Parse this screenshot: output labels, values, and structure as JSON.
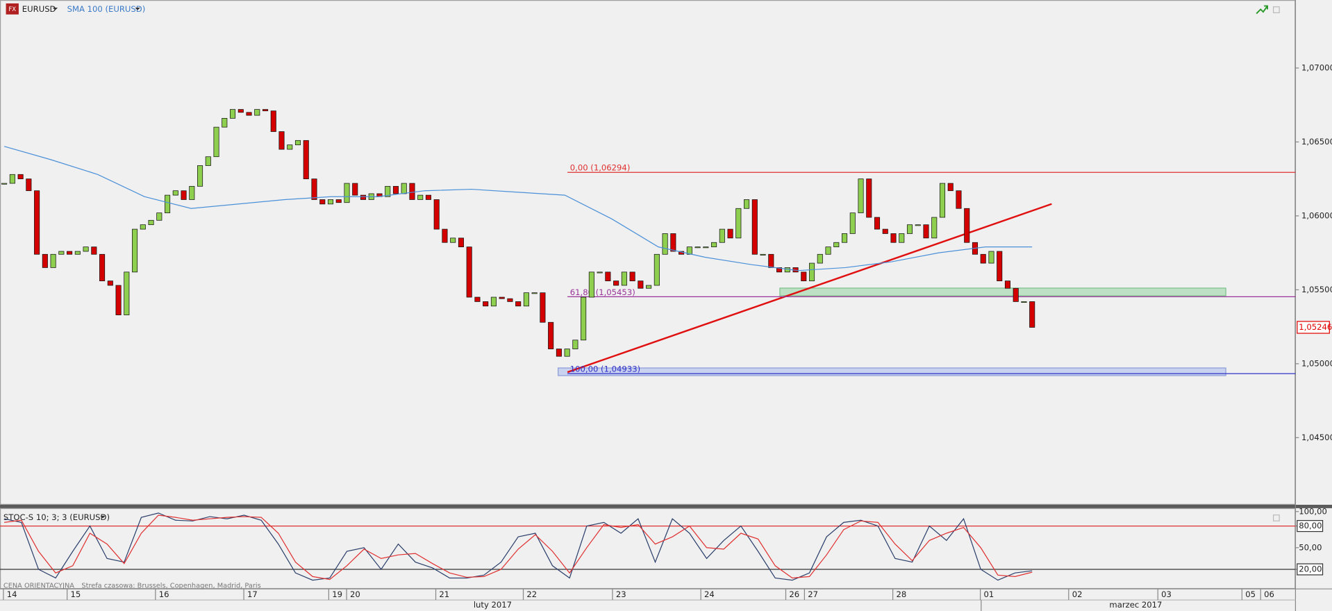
{
  "header": {
    "symbol": "EURUSD",
    "indicator": "SMA 100 (EURUSD)"
  },
  "chart_data": [
    {
      "type": "candlestick",
      "closes": [
        1.0622,
        1.0628,
        1.0625,
        1.0617,
        1.0574,
        1.0565,
        1.0574,
        1.0576,
        1.0574,
        1.0576,
        1.0579,
        1.0574,
        1.0556,
        1.0553,
        1.0533,
        1.0562,
        1.0591,
        1.0594,
        1.0597,
        1.0602,
        1.0614,
        1.0617,
        1.0611,
        1.062,
        1.0634,
        1.064,
        1.066,
        1.0666,
        1.0672,
        1.067,
        1.0668,
        1.0672,
        1.0671,
        1.0657,
        1.0645,
        1.0648,
        1.0651,
        1.0625,
        1.0611,
        1.0608,
        1.0611,
        1.0609,
        1.0622,
        1.0614,
        1.0611,
        1.0615,
        1.0613,
        1.062,
        1.0615,
        1.0622,
        1.0611,
        1.0614,
        1.0611,
        1.0591,
        1.0582,
        1.0585,
        1.0579,
        1.0545,
        1.0542,
        1.0539,
        1.0545,
        1.0544,
        1.0542,
        1.0539,
        1.0548,
        1.0548,
        1.0528,
        1.051,
        1.0505,
        1.051,
        1.0516,
        1.0545,
        1.0562,
        1.0562,
        1.0556,
        1.0553,
        1.0562,
        1.0556,
        1.0551,
        1.0553,
        1.0574,
        1.0588,
        1.0576,
        1.0574,
        1.0579,
        1.0579,
        1.0579,
        1.0582,
        1.0591,
        1.0585,
        1.0605,
        1.0611,
        1.0574,
        1.0574,
        1.0565,
        1.0562,
        1.0565,
        1.0562,
        1.0556,
        1.0568,
        1.0574,
        1.0579,
        1.0582,
        1.0588,
        1.0602,
        1.0625,
        1.0599,
        1.0591,
        1.0588,
        1.0582,
        1.0588,
        1.0594,
        1.0594,
        1.0585,
        1.0599,
        1.0622,
        1.0617,
        1.0605,
        1.0582,
        1.0574,
        1.0568,
        1.0576,
        1.0556,
        1.0551,
        1.0542,
        1.0542,
        1.05246
      ],
      "candle_colors": {
        "up": "#8fcf4f",
        "down": "#d40000"
      },
      "sma": {
        "color": "#4a90d9",
        "values": [
          1.0647,
          1.0638,
          1.0628,
          1.0613,
          1.0605,
          1.0608,
          1.0611,
          1.0613,
          1.0613,
          1.0617,
          1.0618,
          1.0616,
          1.0614,
          1.0598,
          1.0579,
          1.0572,
          1.0567,
          1.0563,
          1.0565,
          1.0569,
          1.0575,
          1.0579,
          1.0579
        ]
      },
      "ylim": [
        1.04046,
        1.0746
      ],
      "yticks": [
        {
          "value": 1.07,
          "label": "1,07000"
        },
        {
          "value": 1.065,
          "label": "1,06500"
        },
        {
          "value": 1.06,
          "label": "1,06000"
        },
        {
          "value": 1.055,
          "label": "1,05500"
        },
        {
          "value": 1.05,
          "label": "1,05000"
        },
        {
          "value": 1.045,
          "label": "1,04500"
        }
      ],
      "current": {
        "value": 1.05246,
        "label": "1,05246",
        "color": "#e00000"
      },
      "levels": [
        {
          "value": 1.06294,
          "label": "0,00 (1,06294)",
          "color": "#e03030"
        },
        {
          "value": 1.05453,
          "label": "61,80 (1,05453)",
          "color": "#993399"
        },
        {
          "value": 1.04933,
          "label": "100,00 (1,04933)",
          "color": "#3030c8"
        }
      ]
    },
    {
      "type": "line",
      "title": "STOC-S 10; 3; 3 (EURUSD)",
      "series": [
        {
          "color": "#2b3f6b",
          "values": [
            90,
            85,
            20,
            8,
            45,
            80,
            35,
            30,
            92,
            98,
            88,
            87,
            93,
            90,
            95,
            88,
            55,
            15,
            5,
            8,
            45,
            50,
            20,
            55,
            30,
            22,
            8,
            8,
            12,
            30,
            65,
            70,
            25,
            8,
            80,
            85,
            70,
            90,
            30,
            90,
            70,
            35,
            60,
            80,
            45,
            8,
            5,
            15,
            65,
            85,
            88,
            80,
            35,
            30,
            80,
            60,
            90,
            20,
            5,
            15,
            18
          ]
        },
        {
          "color": "#e03030",
          "values": [
            85,
            88,
            45,
            15,
            25,
            70,
            55,
            28,
            70,
            95,
            92,
            88,
            90,
            92,
            93,
            92,
            70,
            30,
            10,
            6,
            25,
            48,
            35,
            40,
            42,
            28,
            15,
            9,
            10,
            20,
            48,
            68,
            45,
            15,
            50,
            82,
            78,
            82,
            55,
            65,
            80,
            50,
            48,
            70,
            62,
            25,
            8,
            10,
            40,
            75,
            87,
            85,
            55,
            32,
            60,
            70,
            78,
            50,
            12,
            10,
            16
          ]
        }
      ],
      "ylim": [
        -7.1,
        104.7
      ],
      "yticks": [
        {
          "value": 100,
          "label": "100,00"
        },
        {
          "value": 80,
          "label": "80,00"
        },
        {
          "value": 50,
          "label": "50,00"
        },
        {
          "value": 20,
          "label": "20,00"
        }
      ],
      "levels": [
        {
          "value": 80,
          "color": "#e03030"
        },
        {
          "value": 20,
          "color": "#333333"
        }
      ]
    }
  ],
  "time_axis": {
    "days": [
      "14",
      "15",
      "16",
      "17",
      "19",
      "20",
      "21",
      "22",
      "23",
      "24",
      "26",
      "27",
      "28",
      "01",
      "02",
      "03",
      "05",
      "06"
    ],
    "months": [
      "luty 2017",
      "marzec 2017"
    ]
  },
  "footer": {
    "price_type": "CENA ORIENTACYJNA",
    "timezone": "Strefa czasowa: Brussels, Copenhagen, Madrid, Paris"
  }
}
